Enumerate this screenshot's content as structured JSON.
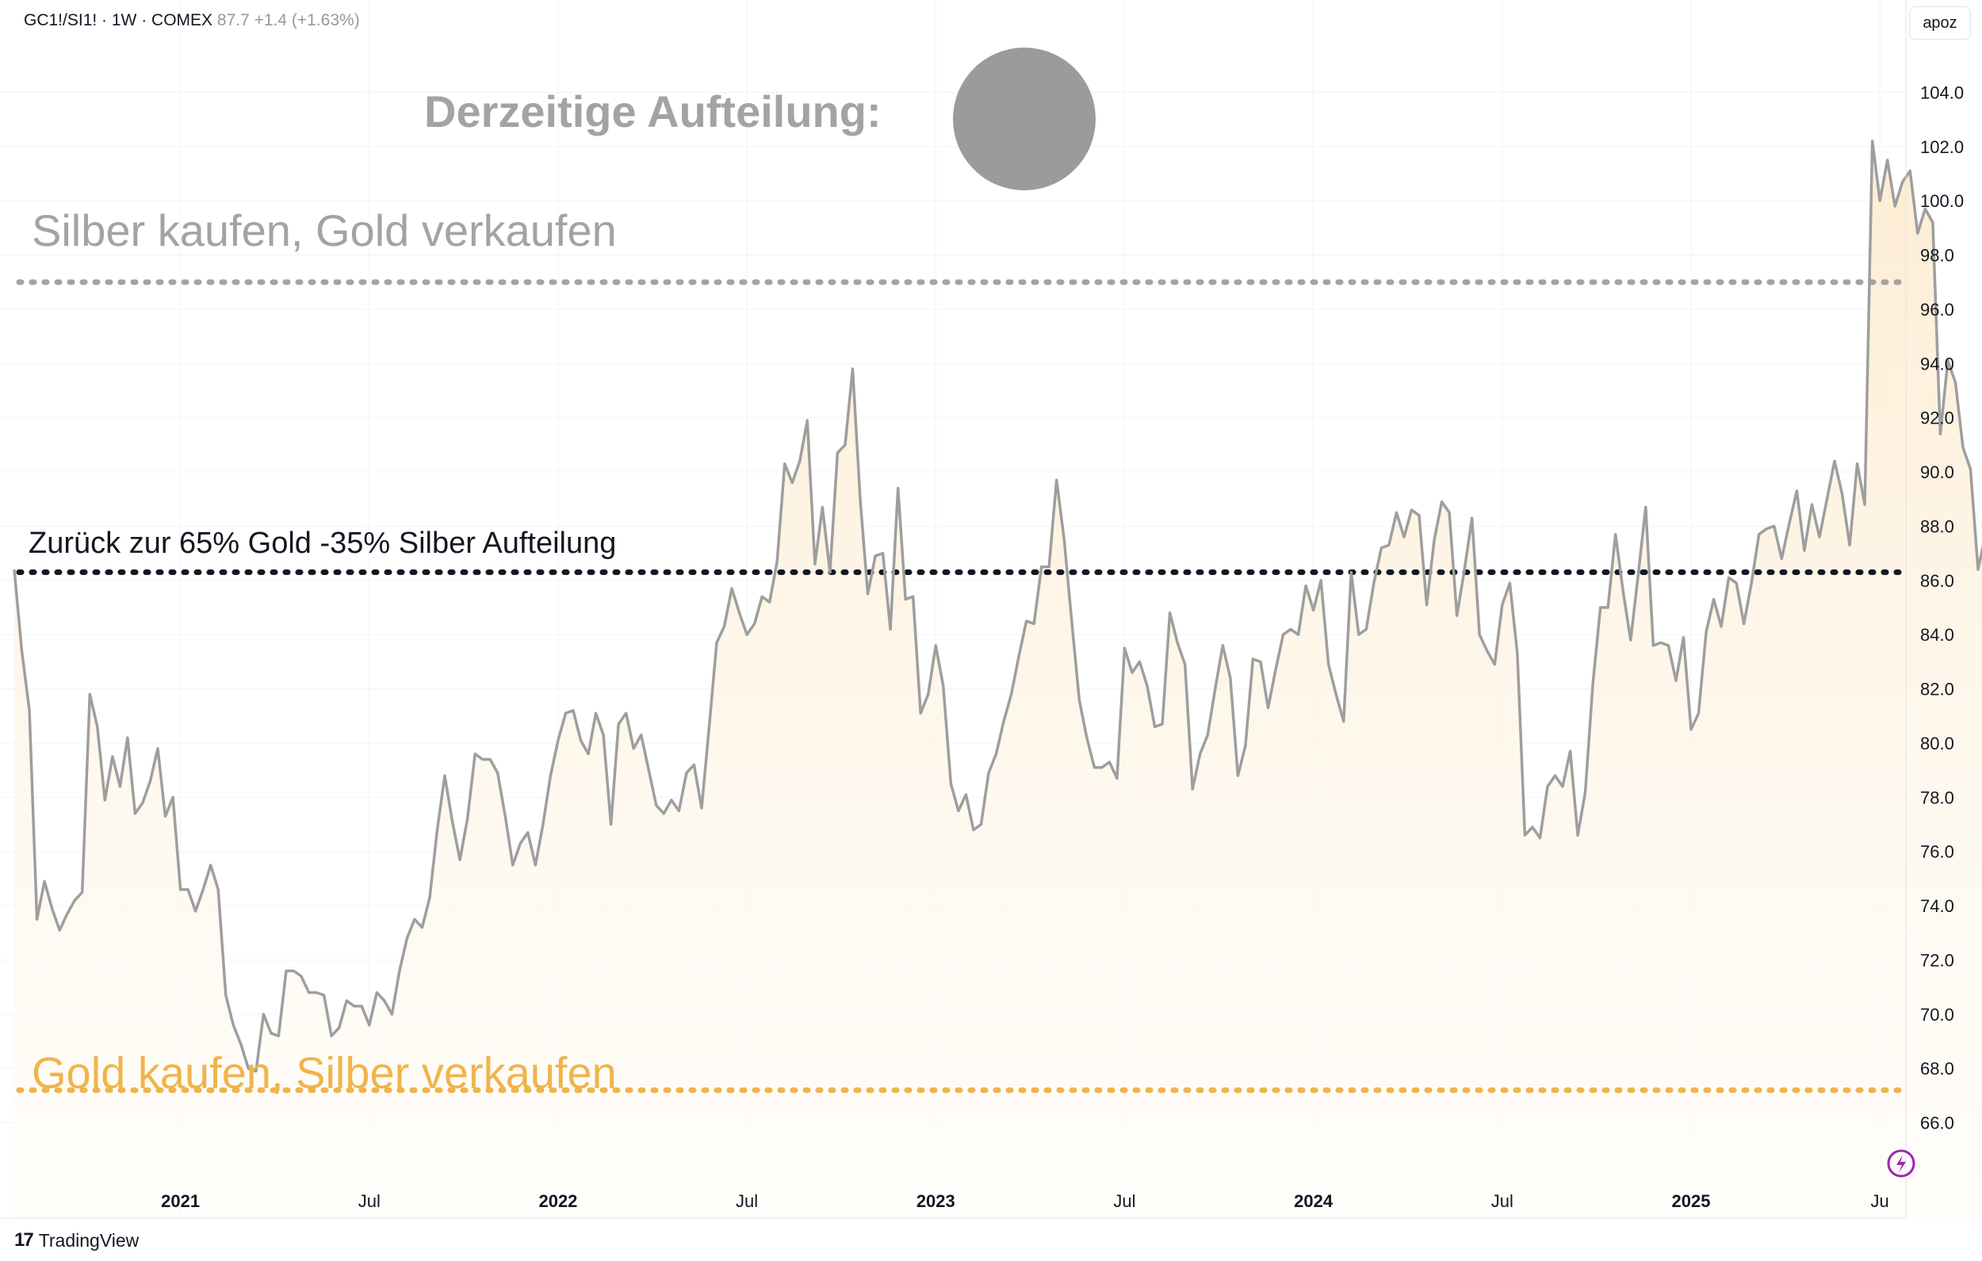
{
  "header": {
    "symbol": "GC1!/SI1! · 1W · COMEX",
    "last": "87.7",
    "change": "+1.4 (+1.63%)"
  },
  "scale_label": "apoz",
  "branding": {
    "logo_mark": "17",
    "name": "TradingView"
  },
  "colors": {
    "line": "#9e9e9e",
    "fill_top": "#fdebd0",
    "fill_bottom": "#fffdf8",
    "orange": "#f0b44c",
    "grey_text": "#a3a3a3",
    "black": "#131722",
    "grid": "#f0f3fa"
  },
  "annotations": {
    "current_allocation": "Derzeitige Aufteilung:",
    "sell_gold": "Silber kaufen, Gold verkaufen",
    "neutral": "Zurück zur 65% Gold -35% Silber Aufteilung",
    "buy_gold": "Gold kaufen, Silber verkaufen"
  },
  "chart_data": {
    "type": "area",
    "title": "GC1!/SI1! · 1W · COMEX",
    "xlabel": "",
    "ylabel": "",
    "ylim": [
      64.0,
      106.0
    ],
    "y_ticks": [
      "66.0",
      "68.0",
      "70.0",
      "72.0",
      "74.0",
      "76.0",
      "78.0",
      "80.0",
      "82.0",
      "84.0",
      "86.0",
      "88.0",
      "90.0",
      "92.0",
      "94.0",
      "96.0",
      "98.0",
      "100.0",
      "102.0",
      "104.0"
    ],
    "x_range": [
      2020.56,
      2025.55
    ],
    "x_ticks": [
      {
        "t": 2021.0,
        "label": "2021",
        "bold": true
      },
      {
        "t": 2021.5,
        "label": "Jul",
        "bold": false
      },
      {
        "t": 2022.0,
        "label": "2022",
        "bold": true
      },
      {
        "t": 2022.5,
        "label": "Jul",
        "bold": false
      },
      {
        "t": 2023.0,
        "label": "2023",
        "bold": true
      },
      {
        "t": 2023.5,
        "label": "Jul",
        "bold": false
      },
      {
        "t": 2024.0,
        "label": "2024",
        "bold": true
      },
      {
        "t": 2024.5,
        "label": "Jul",
        "bold": false
      },
      {
        "t": 2025.0,
        "label": "2025",
        "bold": true
      },
      {
        "t": 2025.5,
        "label": "Ju",
        "bold": false
      }
    ],
    "reference_lines": [
      {
        "name": "sell-gold-level",
        "value": 97.0,
        "color": "#a3a3a3"
      },
      {
        "name": "neutral-level",
        "value": 86.3,
        "color": "#131722"
      },
      {
        "name": "buy-gold-level",
        "value": 67.2,
        "color": "#f0b44c"
      }
    ],
    "series": [
      {
        "name": "GC1!/SI1!",
        "points": [
          [
            2020.56,
            86.4
          ],
          [
            2020.58,
            83.4
          ],
          [
            2020.6,
            81.2
          ],
          [
            2020.62,
            73.5
          ],
          [
            2020.64,
            74.9
          ],
          [
            2020.66,
            73.9
          ],
          [
            2020.68,
            73.1
          ],
          [
            2020.7,
            73.7
          ],
          [
            2020.72,
            74.2
          ],
          [
            2020.74,
            74.5
          ],
          [
            2020.76,
            81.8
          ],
          [
            2020.78,
            80.6
          ],
          [
            2020.8,
            77.9
          ],
          [
            2020.82,
            79.5
          ],
          [
            2020.84,
            78.4
          ],
          [
            2020.86,
            80.2
          ],
          [
            2020.88,
            77.4
          ],
          [
            2020.9,
            77.8
          ],
          [
            2020.92,
            78.6
          ],
          [
            2020.94,
            79.8
          ],
          [
            2020.96,
            77.3
          ],
          [
            2020.98,
            78.0
          ],
          [
            2021.0,
            74.6
          ],
          [
            2021.02,
            74.6
          ],
          [
            2021.04,
            73.8
          ],
          [
            2021.06,
            74.6
          ],
          [
            2021.08,
            75.5
          ],
          [
            2021.1,
            74.6
          ],
          [
            2021.12,
            70.7
          ],
          [
            2021.14,
            69.6
          ],
          [
            2021.16,
            68.9
          ],
          [
            2021.18,
            68.0
          ],
          [
            2021.2,
            67.9
          ],
          [
            2021.22,
            70.0
          ],
          [
            2021.24,
            69.3
          ],
          [
            2021.26,
            69.2
          ],
          [
            2021.28,
            71.6
          ],
          [
            2021.3,
            71.6
          ],
          [
            2021.32,
            71.4
          ],
          [
            2021.34,
            70.8
          ],
          [
            2021.36,
            70.8
          ],
          [
            2021.38,
            70.7
          ],
          [
            2021.4,
            69.2
          ],
          [
            2021.42,
            69.5
          ],
          [
            2021.44,
            70.5
          ],
          [
            2021.46,
            70.3
          ],
          [
            2021.48,
            70.3
          ],
          [
            2021.5,
            69.6
          ],
          [
            2021.52,
            70.8
          ],
          [
            2021.54,
            70.5
          ],
          [
            2021.56,
            70.0
          ],
          [
            2021.58,
            71.6
          ],
          [
            2021.6,
            72.8
          ],
          [
            2021.62,
            73.5
          ],
          [
            2021.64,
            73.2
          ],
          [
            2021.66,
            74.3
          ],
          [
            2021.68,
            76.8
          ],
          [
            2021.7,
            78.8
          ],
          [
            2021.72,
            77.1
          ],
          [
            2021.74,
            75.7
          ],
          [
            2021.76,
            77.2
          ],
          [
            2021.78,
            79.6
          ],
          [
            2021.8,
            79.4
          ],
          [
            2021.82,
            79.4
          ],
          [
            2021.84,
            78.9
          ],
          [
            2021.86,
            77.3
          ],
          [
            2021.88,
            75.5
          ],
          [
            2021.9,
            76.3
          ],
          [
            2021.92,
            76.7
          ],
          [
            2021.94,
            75.5
          ],
          [
            2021.96,
            77.0
          ],
          [
            2021.98,
            78.8
          ],
          [
            2022.0,
            80.1
          ],
          [
            2022.02,
            81.1
          ],
          [
            2022.04,
            81.2
          ],
          [
            2022.06,
            80.1
          ],
          [
            2022.08,
            79.6
          ],
          [
            2022.1,
            81.1
          ],
          [
            2022.12,
            80.3
          ],
          [
            2022.14,
            77.0
          ],
          [
            2022.16,
            80.7
          ],
          [
            2022.18,
            81.1
          ],
          [
            2022.2,
            79.8
          ],
          [
            2022.22,
            80.3
          ],
          [
            2022.24,
            79.0
          ],
          [
            2022.26,
            77.7
          ],
          [
            2022.28,
            77.4
          ],
          [
            2022.3,
            77.9
          ],
          [
            2022.32,
            77.5
          ],
          [
            2022.34,
            78.9
          ],
          [
            2022.36,
            79.2
          ],
          [
            2022.38,
            77.6
          ],
          [
            2022.4,
            80.6
          ],
          [
            2022.42,
            83.7
          ],
          [
            2022.44,
            84.3
          ],
          [
            2022.46,
            85.7
          ],
          [
            2022.48,
            84.8
          ],
          [
            2022.5,
            84.0
          ],
          [
            2022.52,
            84.4
          ],
          [
            2022.54,
            85.4
          ],
          [
            2022.56,
            85.2
          ],
          [
            2022.58,
            86.7
          ],
          [
            2022.6,
            90.3
          ],
          [
            2022.62,
            89.6
          ],
          [
            2022.64,
            90.4
          ],
          [
            2022.66,
            91.9
          ],
          [
            2022.68,
            86.6
          ],
          [
            2022.7,
            88.7
          ],
          [
            2022.72,
            86.3
          ],
          [
            2022.74,
            90.7
          ],
          [
            2022.76,
            91.0
          ],
          [
            2022.78,
            93.8
          ],
          [
            2022.8,
            89.0
          ],
          [
            2022.82,
            85.5
          ],
          [
            2022.84,
            86.9
          ],
          [
            2022.86,
            87.0
          ],
          [
            2022.88,
            84.2
          ],
          [
            2022.9,
            89.4
          ],
          [
            2022.92,
            85.3
          ],
          [
            2022.94,
            85.4
          ],
          [
            2022.96,
            81.1
          ],
          [
            2022.98,
            81.8
          ],
          [
            2023.0,
            83.6
          ],
          [
            2023.02,
            82.1
          ],
          [
            2023.04,
            78.5
          ],
          [
            2023.06,
            77.5
          ],
          [
            2023.08,
            78.1
          ],
          [
            2023.1,
            76.8
          ],
          [
            2023.12,
            77.0
          ],
          [
            2023.14,
            78.9
          ],
          [
            2023.16,
            79.6
          ],
          [
            2023.18,
            80.8
          ],
          [
            2023.2,
            81.8
          ],
          [
            2023.22,
            83.2
          ],
          [
            2023.24,
            84.5
          ],
          [
            2023.26,
            84.4
          ],
          [
            2023.28,
            86.5
          ],
          [
            2023.3,
            86.5
          ],
          [
            2023.32,
            89.7
          ],
          [
            2023.34,
            87.5
          ],
          [
            2023.36,
            84.5
          ],
          [
            2023.38,
            81.6
          ],
          [
            2023.4,
            80.2
          ],
          [
            2023.42,
            79.1
          ],
          [
            2023.44,
            79.1
          ],
          [
            2023.46,
            79.3
          ],
          [
            2023.48,
            78.7
          ],
          [
            2023.5,
            83.5
          ],
          [
            2023.52,
            82.6
          ],
          [
            2023.54,
            83.0
          ],
          [
            2023.56,
            82.1
          ],
          [
            2023.58,
            80.6
          ],
          [
            2023.6,
            80.7
          ],
          [
            2023.62,
            84.8
          ],
          [
            2023.64,
            83.7
          ],
          [
            2023.66,
            82.9
          ],
          [
            2023.68,
            78.3
          ],
          [
            2023.7,
            79.6
          ],
          [
            2023.72,
            80.3
          ],
          [
            2023.74,
            82.0
          ],
          [
            2023.76,
            83.6
          ],
          [
            2023.78,
            82.4
          ],
          [
            2023.8,
            78.8
          ],
          [
            2023.82,
            79.9
          ],
          [
            2023.84,
            83.1
          ],
          [
            2023.86,
            83.0
          ],
          [
            2023.88,
            81.3
          ],
          [
            2023.9,
            82.7
          ],
          [
            2023.92,
            84.0
          ],
          [
            2023.94,
            84.2
          ],
          [
            2023.96,
            84.0
          ],
          [
            2023.98,
            85.8
          ],
          [
            2024.0,
            84.9
          ],
          [
            2024.02,
            86.0
          ],
          [
            2024.04,
            82.9
          ],
          [
            2024.06,
            81.8
          ],
          [
            2024.08,
            80.8
          ],
          [
            2024.1,
            86.3
          ],
          [
            2024.12,
            84.0
          ],
          [
            2024.14,
            84.2
          ],
          [
            2024.16,
            85.9
          ],
          [
            2024.18,
            87.2
          ],
          [
            2024.2,
            87.3
          ],
          [
            2024.22,
            88.5
          ],
          [
            2024.24,
            87.6
          ],
          [
            2024.26,
            88.6
          ],
          [
            2024.28,
            88.4
          ],
          [
            2024.3,
            85.1
          ],
          [
            2024.32,
            87.5
          ],
          [
            2024.34,
            88.9
          ],
          [
            2024.36,
            88.5
          ],
          [
            2024.38,
            84.7
          ],
          [
            2024.4,
            86.4
          ],
          [
            2024.42,
            88.3
          ],
          [
            2024.44,
            84.0
          ],
          [
            2024.46,
            83.4
          ],
          [
            2024.48,
            82.9
          ],
          [
            2024.5,
            85.1
          ],
          [
            2024.52,
            85.9
          ],
          [
            2024.54,
            83.3
          ],
          [
            2024.56,
            76.6
          ],
          [
            2024.58,
            76.9
          ],
          [
            2024.6,
            76.5
          ],
          [
            2024.62,
            78.4
          ],
          [
            2024.64,
            78.8
          ],
          [
            2024.66,
            78.4
          ],
          [
            2024.68,
            79.7
          ],
          [
            2024.7,
            76.6
          ],
          [
            2024.72,
            78.2
          ],
          [
            2024.74,
            82.2
          ],
          [
            2024.76,
            85.0
          ],
          [
            2024.78,
            85.0
          ],
          [
            2024.8,
            87.7
          ],
          [
            2024.82,
            85.6
          ],
          [
            2024.84,
            83.8
          ],
          [
            2024.86,
            86.2
          ],
          [
            2024.88,
            88.7
          ],
          [
            2024.9,
            83.6
          ],
          [
            2024.92,
            83.7
          ],
          [
            2024.94,
            83.6
          ],
          [
            2024.96,
            82.3
          ],
          [
            2024.98,
            83.9
          ],
          [
            2025.0,
            80.5
          ],
          [
            2025.02,
            81.1
          ],
          [
            2025.04,
            84.1
          ],
          [
            2025.06,
            85.3
          ],
          [
            2025.08,
            84.3
          ],
          [
            2025.1,
            86.1
          ],
          [
            2025.12,
            85.9
          ],
          [
            2025.14,
            84.4
          ],
          [
            2025.16,
            85.9
          ],
          [
            2025.18,
            87.7
          ],
          [
            2025.2,
            87.9
          ],
          [
            2025.22,
            88.0
          ],
          [
            2025.24,
            86.8
          ],
          [
            2025.26,
            88.1
          ],
          [
            2025.28,
            89.3
          ],
          [
            2025.3,
            87.1
          ],
          [
            2025.32,
            88.8
          ],
          [
            2025.34,
            87.6
          ],
          [
            2025.36,
            89.0
          ],
          [
            2025.38,
            90.4
          ],
          [
            2025.4,
            89.2
          ],
          [
            2025.42,
            87.3
          ],
          [
            2025.44,
            90.3
          ],
          [
            2025.46,
            88.8
          ],
          [
            2025.48,
            102.2
          ],
          [
            2025.5,
            100.0
          ],
          [
            2025.52,
            101.5
          ],
          [
            2025.54,
            99.8
          ],
          [
            2025.56,
            100.7
          ],
          [
            2025.58,
            101.1
          ],
          [
            2025.6,
            98.8
          ],
          [
            2025.62,
            99.7
          ],
          [
            2025.64,
            99.2
          ],
          [
            2025.66,
            91.4
          ],
          [
            2025.68,
            94.1
          ],
          [
            2025.7,
            93.3
          ],
          [
            2025.72,
            90.9
          ],
          [
            2025.74,
            90.1
          ],
          [
            2025.76,
            86.4
          ],
          [
            2025.78,
            87.7
          ]
        ]
      }
    ]
  }
}
